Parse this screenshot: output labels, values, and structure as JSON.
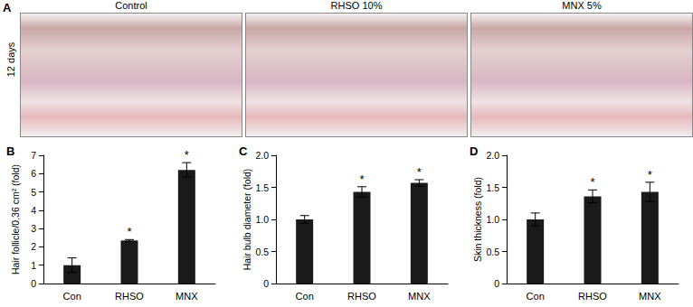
{
  "panel_a": {
    "label": "A",
    "row_label": "12 days",
    "images": [
      "Control",
      "RHSO 10%",
      "MNX 5%"
    ]
  },
  "chart_data": [
    {
      "type": "bar",
      "panel": "B",
      "y_label": "Hair follicle/0.36 cm² (fold)",
      "categories": [
        "Con",
        "RHSO",
        "MNX"
      ],
      "values": [
        1.0,
        2.35,
        6.2
      ],
      "errors": [
        0.4,
        0.05,
        0.4
      ],
      "annotations": [
        null,
        "*",
        "*"
      ],
      "color": "#1a1a1a",
      "ylim": [
        0,
        7
      ],
      "yticks": [
        0,
        1,
        2,
        3,
        4,
        5,
        6,
        7
      ],
      "grid": false
    },
    {
      "type": "bar",
      "panel": "C",
      "y_label": "Hair bulb diameter (fold)",
      "categories": [
        "Con",
        "RHSO",
        "MNX"
      ],
      "values": [
        1.0,
        1.43,
        1.57
      ],
      "errors": [
        0.06,
        0.08,
        0.05
      ],
      "annotations": [
        null,
        "*",
        "*"
      ],
      "color": "#1a1a1a",
      "ylim": [
        0,
        2
      ],
      "yticks": [
        0,
        0.5,
        {
          "value": 1,
          "label": "1.0"
        },
        1.5,
        {
          "value": 2,
          "label": "2.0"
        }
      ],
      "grid": false
    },
    {
      "type": "bar",
      "panel": "D",
      "y_label": "Skin thickness (fold)",
      "categories": [
        "Con",
        "RHSO",
        "MNX"
      ],
      "values": [
        1.0,
        1.36,
        1.43
      ],
      "errors": [
        0.1,
        0.1,
        0.15
      ],
      "annotations": [
        null,
        "*",
        "*"
      ],
      "color": "#1a1a1a",
      "ylim": [
        0,
        2
      ],
      "yticks": [
        0,
        0.5,
        {
          "value": 1,
          "label": "1.0"
        },
        1.5,
        {
          "value": 2,
          "label": "2.0"
        }
      ],
      "grid": false
    }
  ]
}
